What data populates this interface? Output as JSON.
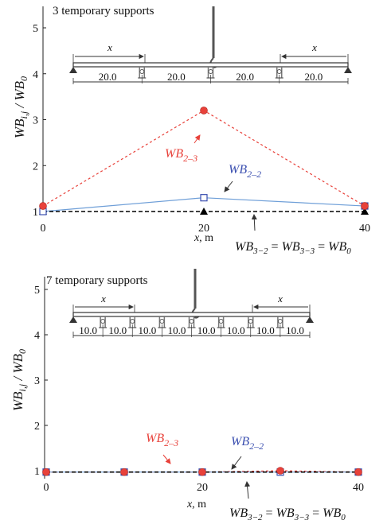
{
  "chart_data": [
    {
      "type": "line",
      "title": "3 temporary supports",
      "ylabel": "WB_{i,j} / WB_0",
      "xlabel": "x, m",
      "xticks": [
        "0",
        "20",
        "40"
      ],
      "yticks": [
        "1",
        "2",
        "3",
        "4",
        "5"
      ],
      "xlim": [
        0,
        40
      ],
      "ylim": [
        1,
        5
      ],
      "grid": false,
      "x": [
        0,
        20,
        40
      ],
      "series": [
        {
          "name": "WB_{2-3}",
          "values": [
            1.12,
            3.2,
            1.12
          ],
          "color": "#e8413a",
          "dash": "dotted",
          "marker": "circle"
        },
        {
          "name": "WB_{2-2}",
          "values": [
            1.0,
            1.3,
            1.12
          ],
          "color": "#6f9fd8",
          "dash": "solid",
          "marker": "open-square"
        },
        {
          "name": "WB_{3-2} = WB_{3-3} = WB_0",
          "values": [
            1.0,
            1.0,
            1.0
          ],
          "color": "#000000",
          "dash": "dashed",
          "marker": "triangle"
        }
      ],
      "annotations": {
        "wb23": "WB",
        "wb23_sub": "2–3",
        "wb22": "WB",
        "wb22_sub": "2–2"
      },
      "bridge": {
        "label_x": "x",
        "spans": [
          "20.0",
          "20.0",
          "20.0",
          "20.0"
        ]
      }
    },
    {
      "type": "line",
      "title": "7 temporary supports",
      "ylabel": "WB_{i,j} / WB_0",
      "xlabel": "x, m",
      "xticks": [
        "0",
        "20",
        "40"
      ],
      "yticks": [
        "1",
        "2",
        "3",
        "4",
        "5"
      ],
      "xlim": [
        0,
        40
      ],
      "ylim": [
        1,
        5
      ],
      "grid": false,
      "x": [
        0,
        10,
        20,
        30,
        40
      ],
      "series": [
        {
          "name": "WB_{2-3}",
          "values": [
            0.97,
            0.97,
            0.97,
            1.0,
            0.97
          ],
          "color": "#e8413a",
          "dash": "dotted",
          "marker": "circle"
        },
        {
          "name": "WB_{2-2}",
          "values": [
            0.97,
            0.97,
            0.97,
            0.97,
            0.97
          ],
          "color": "#6f9fd8",
          "dash": "solid",
          "marker": "open-square"
        },
        {
          "name": "WB_{3-2} = WB_{3-3} = WB_0",
          "values": [
            0.97,
            0.97,
            0.97,
            0.97,
            0.97
          ],
          "color": "#000000",
          "dash": "dashed",
          "marker": "square"
        }
      ],
      "annotations": {
        "wb23": "WB",
        "wb23_sub": "2–3",
        "wb22": "WB",
        "wb22_sub": "2–2"
      },
      "bridge": {
        "label_x": "x",
        "spans": [
          "10.0",
          "10.0",
          "10.0",
          "10.0",
          "10.0",
          "10.0",
          "10.0",
          "10.0"
        ]
      }
    }
  ],
  "legend_text": {
    "wb3": "WB",
    "sub32": "3−2",
    "eq": " = ",
    "sub33": "3−3",
    "wb0sub": "0"
  },
  "colors": {
    "red": "#e8413a",
    "blue": "#6f9fd8",
    "black": "#000000",
    "support": "#888888"
  }
}
